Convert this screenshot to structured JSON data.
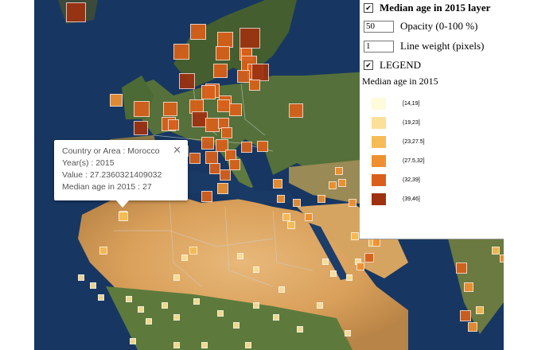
{
  "layer_panel": {
    "layer_title": "Median age in 2015 layer",
    "layer_checked": true,
    "opacity_value": "50",
    "opacity_label": "Opacity (0-100 %)",
    "line_weight_value": "1",
    "line_weight_label": "Line weight (pixels)",
    "legend_toggle_label": "LEGEND",
    "legend_checked": true
  },
  "legend": {
    "title": "Median age in 2015",
    "classes": [
      {
        "label": "[14,19]",
        "color": "#fdfbd9"
      },
      {
        "label": "(19,23]",
        "color": "#fbe09a"
      },
      {
        "label": "(23,27.5]",
        "color": "#f6bb55"
      },
      {
        "label": "(27.5,32]",
        "color": "#ef9030"
      },
      {
        "label": "(32,39]",
        "color": "#d9601a"
      },
      {
        "label": "(39,46]",
        "color": "#9e3210"
      }
    ]
  },
  "popup": {
    "close_glyph": "✕",
    "lines": [
      "Country or Area : Morocco",
      "Year(s) : 2015",
      "Value : 27.2360321409032",
      "Median age in 2015 : 27"
    ]
  },
  "colors": {
    "ocean": "#1b3a66",
    "land_europe": "#4f6b36",
    "sahara": "#d9a560",
    "map_edge_left": "#ffffff"
  }
}
